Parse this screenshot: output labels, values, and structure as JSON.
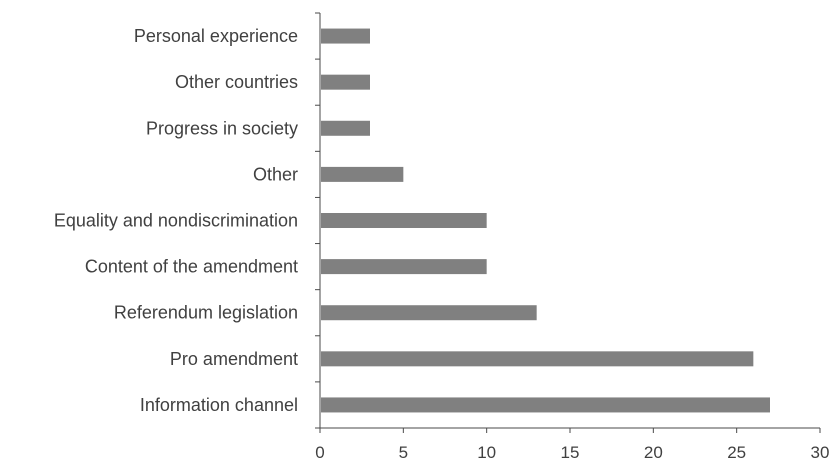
{
  "chart_data": {
    "type": "bar",
    "orientation": "horizontal",
    "title": "",
    "xlabel": "",
    "ylabel": "",
    "categories": [
      "Personal experience",
      "Other countries",
      "Progress in society",
      "Other",
      "Equality and nondiscrimination",
      "Content of the amendment",
      "Referendum legislation",
      "Pro amendment",
      "Information channel"
    ],
    "values": [
      3,
      3,
      3,
      5,
      10,
      10,
      13,
      26,
      27
    ],
    "xlim": [
      0,
      30
    ],
    "xticks": [
      "0",
      "5",
      "10",
      "15",
      "20",
      "25",
      "30"
    ],
    "grid": false,
    "legend": "none",
    "bar_color": "#808080"
  }
}
